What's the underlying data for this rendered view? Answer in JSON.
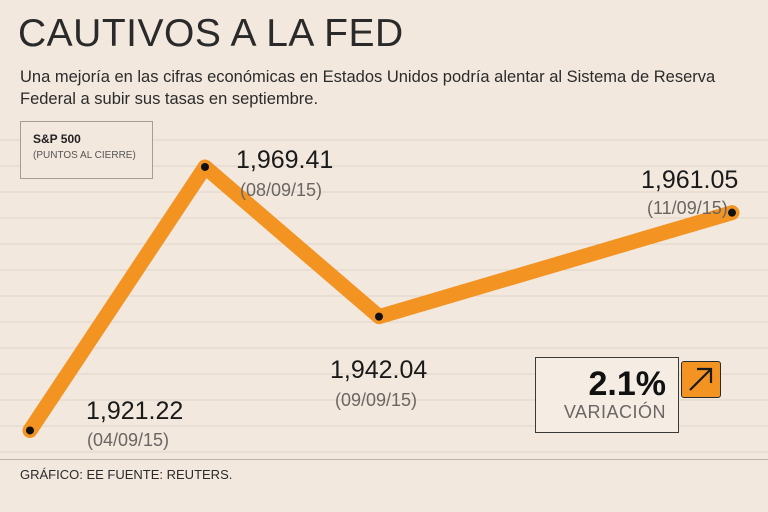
{
  "header": {
    "title": "CAUTIVOS A LA FED",
    "subtitle": "Una mejoría en las cifras económicas en Estados Unidos podría alentar al Sistema de Reserva Federal a subir sus tasas en septiembre."
  },
  "legend": {
    "title": "S&P 500",
    "subtitle": "(PUNTOS AL CIERRE)"
  },
  "chart_data": {
    "type": "line",
    "title": "CAUTIVOS A LA FED",
    "series": [
      {
        "name": "S&P 500",
        "x": [
          "04/09/15",
          "08/09/15",
          "09/09/15",
          "11/09/15"
        ],
        "values": [
          1921.22,
          1969.41,
          1942.04,
          1961.05
        ],
        "labels": [
          "1,921.22",
          "1,969.41",
          "1,942.04",
          "1,961.05"
        ],
        "dates": [
          "(04/09/15)",
          "(08/09/15)",
          "(09/09/15)",
          "(11/09/15)"
        ]
      }
    ],
    "ylim": [
      1916,
      1978
    ],
    "grid": true,
    "line_color": "#f29322"
  },
  "variation": {
    "value": "2.1%",
    "label": "VARIACIÓN",
    "icon": "arrow-up-right-icon"
  },
  "footer": {
    "text": "GRÁFICO: EE  FUENTE: REUTERS."
  }
}
